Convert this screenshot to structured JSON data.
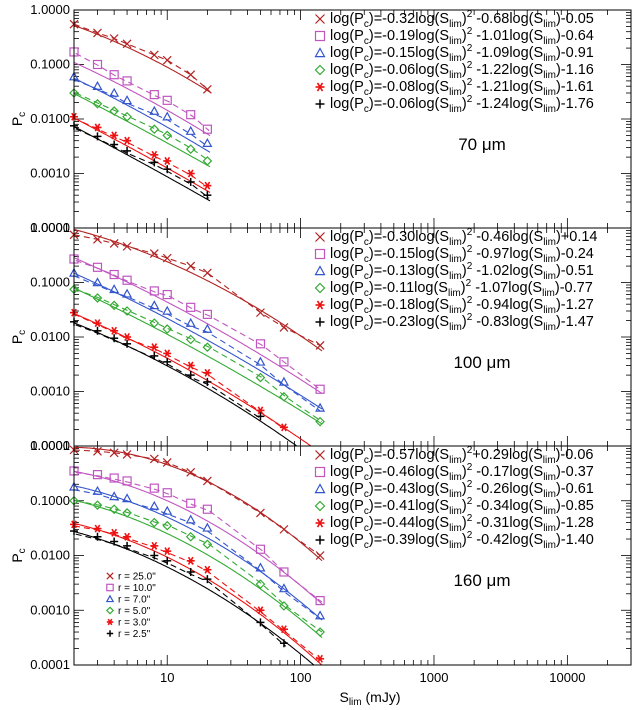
{
  "chart_data": {
    "type": "line",
    "xscale": "log",
    "yscale": "log",
    "xlim": [
      2,
      30000
    ],
    "ylim": [
      0.0001,
      1.0
    ],
    "xticks": [
      10,
      100,
      1000,
      10000
    ],
    "xtick_labels": [
      "10",
      "100",
      "1000",
      "10000"
    ],
    "yticks": [
      1.0,
      0.1,
      0.01,
      0.001,
      0.0001
    ],
    "ytick_labels": [
      "1.0000",
      "0.1000",
      "0.0100",
      "0.0010",
      "0.0001"
    ],
    "xlabel": {
      "main": "S",
      "sub": "lim",
      "tail": " (mJy)"
    },
    "ylabel": {
      "main": "P",
      "sub": "c"
    },
    "colors": [
      "#b22222",
      "#c055c0",
      "#3355cc",
      "#33aa33",
      "#ee1111",
      "#000000"
    ],
    "legend": {
      "placement": "bottom-left of bottom panel",
      "entries": [
        {
          "marker": "x",
          "label": "r = 25.0\""
        },
        {
          "marker": "square",
          "label": "r = 10.0\""
        },
        {
          "marker": "triangle",
          "label": "r = 7.0\""
        },
        {
          "marker": "diamond",
          "label": "r = 5.0\""
        },
        {
          "marker": "asterisk",
          "label": "r = 3.0\""
        },
        {
          "marker": "plus",
          "label": "r = 2.5\""
        }
      ]
    },
    "panels": [
      {
        "label": "70 μm",
        "x": [
          2,
          3,
          4,
          5,
          8,
          10,
          15,
          20
        ],
        "series": [
          {
            "marker": "x",
            "fit": [
              -0.32,
              -0.68,
              -0.05
            ],
            "values": [
              0.55,
              0.38,
              0.3,
              0.24,
              0.15,
              0.12,
              0.065,
              0.035
            ],
            "equation": [
              {
                "t": "log(P"
              },
              {
                "s": "c"
              },
              {
                "t": ")=-0.32log(S"
              },
              {
                "s": "lim"
              },
              {
                "t": ")"
              },
              {
                "p": "2"
              },
              {
                "t": " -0.68log(S"
              },
              {
                "s": "lim"
              },
              {
                "t": ")-0.05"
              }
            ]
          },
          {
            "marker": "square",
            "fit": [
              -0.19,
              -1.01,
              -0.64
            ],
            "values": [
              0.17,
              0.1,
              0.065,
              0.05,
              0.028,
              0.022,
              0.012,
              0.0065
            ],
            "equation": [
              {
                "t": "log(P"
              },
              {
                "s": "c"
              },
              {
                "t": ")=-0.19log(S"
              },
              {
                "s": "lim"
              },
              {
                "t": ")"
              },
              {
                "p": "2"
              },
              {
                "t": " -1.01log(S"
              },
              {
                "s": "lim"
              },
              {
                "t": ")-0.64"
              }
            ]
          },
          {
            "marker": "triangle",
            "fit": [
              -0.15,
              -1.09,
              -0.91
            ],
            "values": [
              0.06,
              0.04,
              0.03,
              0.022,
              0.014,
              0.011,
              0.006,
              0.0036
            ],
            "equation": [
              {
                "t": "log(P"
              },
              {
                "s": "c"
              },
              {
                "t": ")=-0.15log(S"
              },
              {
                "s": "lim"
              },
              {
                "t": ")"
              },
              {
                "p": "2"
              },
              {
                "t": " -1.09log(S"
              },
              {
                "s": "lim"
              },
              {
                "t": ")-0.91"
              }
            ]
          },
          {
            "marker": "diamond",
            "fit": [
              -0.06,
              -1.22,
              -1.16
            ],
            "values": [
              0.03,
              0.019,
              0.014,
              0.011,
              0.0065,
              0.005,
              0.0028,
              0.0017
            ],
            "equation": [
              {
                "t": "log(P"
              },
              {
                "s": "c"
              },
              {
                "t": ")=-0.06log(S"
              },
              {
                "s": "lim"
              },
              {
                "t": ")"
              },
              {
                "p": "2"
              },
              {
                "t": " -1.22log(S"
              },
              {
                "s": "lim"
              },
              {
                "t": ")-1.16"
              }
            ]
          },
          {
            "marker": "asterisk",
            "fit": [
              -0.08,
              -1.21,
              -1.61
            ],
            "values": [
              0.011,
              0.007,
              0.005,
              0.004,
              0.0022,
              0.0017,
              0.001,
              0.0006
            ],
            "equation": [
              {
                "t": "log(P"
              },
              {
                "s": "c"
              },
              {
                "t": ")=-0.08log(S"
              },
              {
                "s": "lim"
              },
              {
                "t": ")"
              },
              {
                "p": "2"
              },
              {
                "t": " -1.21log(S"
              },
              {
                "s": "lim"
              },
              {
                "t": ")-1.61"
              }
            ]
          },
          {
            "marker": "plus",
            "fit": [
              -0.06,
              -1.24,
              -1.76
            ],
            "values": [
              0.0075,
              0.0048,
              0.0034,
              0.0026,
              0.0016,
              0.0012,
              0.0007,
              0.0004
            ],
            "equation": [
              {
                "t": "log(P"
              },
              {
                "s": "c"
              },
              {
                "t": ")=-0.06log(S"
              },
              {
                "s": "lim"
              },
              {
                "t": ")"
              },
              {
                "p": "2"
              },
              {
                "t": " -1.24log(S"
              },
              {
                "s": "lim"
              },
              {
                "t": ")-1.76"
              }
            ]
          }
        ]
      },
      {
        "label": "100 μm",
        "x": [
          2,
          3,
          4,
          5,
          8,
          10,
          15,
          20,
          50,
          75,
          140
        ],
        "series": [
          {
            "marker": "x",
            "fit": [
              -0.3,
              -0.46,
              0.14
            ],
            "values": [
              0.75,
              0.62,
              0.52,
              0.46,
              0.34,
              0.28,
              0.2,
              0.15,
              0.028,
              0.015,
              0.007
            ],
            "equation": [
              {
                "t": "log(P"
              },
              {
                "s": "c"
              },
              {
                "t": ")=-0.30log(S"
              },
              {
                "s": "lim"
              },
              {
                "t": ")"
              },
              {
                "p": "2"
              },
              {
                "t": " -0.46log(S"
              },
              {
                "s": "lim"
              },
              {
                "t": ")+0.14"
              }
            ]
          },
          {
            "marker": "square",
            "fit": [
              -0.15,
              -0.97,
              -0.24
            ],
            "values": [
              0.27,
              0.19,
              0.14,
              0.11,
              0.07,
              0.06,
              0.035,
              0.026,
              0.0075,
              0.0035,
              0.0011
            ],
            "equation": [
              {
                "t": "log(P"
              },
              {
                "s": "c"
              },
              {
                "t": ")=-0.15log(S"
              },
              {
                "s": "lim"
              },
              {
                "t": ")"
              },
              {
                "p": "2"
              },
              {
                "t": " -0.97log(S"
              },
              {
                "s": "lim"
              },
              {
                "t": ")-0.24"
              }
            ]
          },
          {
            "marker": "triangle",
            "fit": [
              -0.13,
              -1.02,
              -0.51
            ],
            "values": [
              0.15,
              0.1,
              0.075,
              0.062,
              0.038,
              0.03,
              0.018,
              0.014,
              0.0035,
              0.0015,
              0.0005
            ],
            "equation": [
              {
                "t": "log(P"
              },
              {
                "s": "c"
              },
              {
                "t": ")=-0.13log(S"
              },
              {
                "s": "lim"
              },
              {
                "t": ")"
              },
              {
                "p": "2"
              },
              {
                "t": " -1.02log(S"
              },
              {
                "s": "lim"
              },
              {
                "t": ")-0.51"
              }
            ]
          },
          {
            "marker": "diamond",
            "fit": [
              -0.11,
              -1.07,
              -0.77
            ],
            "values": [
              0.075,
              0.052,
              0.038,
              0.03,
              0.018,
              0.014,
              0.009,
              0.0065,
              0.0018,
              0.0008,
              0.00028
            ],
            "equation": [
              {
                "t": "log(P"
              },
              {
                "s": "c"
              },
              {
                "t": ")=-0.11log(S"
              },
              {
                "s": "lim"
              },
              {
                "t": ")"
              },
              {
                "p": "2"
              },
              {
                "t": " -1.07log(S"
              },
              {
                "s": "lim"
              },
              {
                "t": ")-0.77"
              }
            ]
          },
          {
            "marker": "asterisk",
            "fit": [
              -0.18,
              -0.94,
              -1.27
            ],
            "values": [
              0.028,
              0.018,
              0.013,
              0.01,
              0.0065,
              0.005,
              0.003,
              0.0022,
              0.00045,
              0.00022
            ],
            "equation": [
              {
                "t": "log(P"
              },
              {
                "s": "c"
              },
              {
                "t": ")=-0.18log(S"
              },
              {
                "s": "lim"
              },
              {
                "t": ")"
              },
              {
                "p": "2"
              },
              {
                "t": " -0.94log(S"
              },
              {
                "s": "lim"
              },
              {
                "t": ")-1.27"
              }
            ]
          },
          {
            "marker": "plus",
            "fit": [
              -0.23,
              -0.83,
              -1.47
            ],
            "values": [
              0.019,
              0.013,
              0.0095,
              0.0075,
              0.0045,
              0.0035,
              0.002,
              0.0015,
              0.00035
            ],
            "equation": [
              {
                "t": "log(P"
              },
              {
                "s": "c"
              },
              {
                "t": ")=-0.23log(S"
              },
              {
                "s": "lim"
              },
              {
                "t": ")"
              },
              {
                "p": "2"
              },
              {
                "t": " -0.83log(S"
              },
              {
                "s": "lim"
              },
              {
                "t": ")-1.47"
              }
            ]
          }
        ]
      },
      {
        "label": "160 μm",
        "x": [
          2,
          3,
          4,
          5,
          8,
          10,
          15,
          20,
          50,
          75,
          140
        ],
        "series": [
          {
            "marker": "x",
            "fit": [
              -0.57,
              0.29,
              -0.06
            ],
            "values": [
              0.85,
              0.8,
              0.75,
              0.7,
              0.58,
              0.5,
              0.33,
              0.23,
              0.06,
              0.03,
              0.01
            ],
            "equation": [
              {
                "t": "log(P"
              },
              {
                "s": "c"
              },
              {
                "t": ")=-0.57log(S"
              },
              {
                "s": "lim"
              },
              {
                "t": ")"
              },
              {
                "p": "2"
              },
              {
                "t": "+0.29log(S"
              },
              {
                "s": "lim"
              },
              {
                "t": ")-0.06"
              }
            ]
          },
          {
            "marker": "square",
            "fit": [
              -0.46,
              -0.17,
              -0.37
            ],
            "values": [
              0.35,
              0.3,
              0.26,
              0.23,
              0.17,
              0.14,
              0.09,
              0.07,
              0.013,
              0.005,
              0.0015
            ],
            "equation": [
              {
                "t": "log(P"
              },
              {
                "s": "c"
              },
              {
                "t": ")=-0.46log(S"
              },
              {
                "s": "lim"
              },
              {
                "t": ")"
              },
              {
                "p": "2"
              },
              {
                "t": " -0.17log(S"
              },
              {
                "s": "lim"
              },
              {
                "t": ")-0.37"
              }
            ]
          },
          {
            "marker": "triangle",
            "fit": [
              -0.43,
              -0.26,
              -0.61
            ],
            "values": [
              0.18,
              0.15,
              0.12,
              0.11,
              0.08,
              0.065,
              0.045,
              0.032,
              0.006,
              0.0025,
              0.0008
            ],
            "equation": [
              {
                "t": "log(P"
              },
              {
                "s": "c"
              },
              {
                "t": ")=-0.43log(S"
              },
              {
                "s": "lim"
              },
              {
                "t": ")"
              },
              {
                "p": "2"
              },
              {
                "t": " -0.26log(S"
              },
              {
                "s": "lim"
              },
              {
                "t": ")-0.61"
              }
            ]
          },
          {
            "marker": "diamond",
            "fit": [
              -0.41,
              -0.34,
              -0.85
            ],
            "values": [
              0.1,
              0.083,
              0.07,
              0.06,
              0.04,
              0.035,
              0.022,
              0.016,
              0.003,
              0.0012,
              0.0004
            ],
            "equation": [
              {
                "t": "log(P"
              },
              {
                "s": "c"
              },
              {
                "t": ")=-0.41log(S"
              },
              {
                "s": "lim"
              },
              {
                "t": ")"
              },
              {
                "p": "2"
              },
              {
                "t": " -0.34log(S"
              },
              {
                "s": "lim"
              },
              {
                "t": ")-0.85"
              }
            ]
          },
          {
            "marker": "asterisk",
            "fit": [
              -0.44,
              -0.31,
              -1.28
            ],
            "values": [
              0.037,
              0.031,
              0.026,
              0.022,
              0.015,
              0.012,
              0.008,
              0.0055,
              0.001,
              0.00045,
              0.00013
            ],
            "equation": [
              {
                "t": "log(P"
              },
              {
                "s": "c"
              },
              {
                "t": ")=-0.44log(S"
              },
              {
                "s": "lim"
              },
              {
                "t": ")"
              },
              {
                "p": "2"
              },
              {
                "t": " -0.31log(S"
              },
              {
                "s": "lim"
              },
              {
                "t": ")-1.28"
              }
            ]
          },
          {
            "marker": "plus",
            "fit": [
              -0.39,
              -0.42,
              -1.4
            ],
            "values": [
              0.028,
              0.022,
              0.018,
              0.015,
              0.01,
              0.008,
              0.005,
              0.0037,
              0.0006,
              0.00025
            ],
            "equation": [
              {
                "t": "log(P"
              },
              {
                "s": "c"
              },
              {
                "t": ")=-0.39log(S"
              },
              {
                "s": "lim"
              },
              {
                "t": ")"
              },
              {
                "p": "2"
              },
              {
                "t": " -0.42log(S"
              },
              {
                "s": "lim"
              },
              {
                "t": ")-1.40"
              }
            ]
          }
        ]
      }
    ]
  }
}
